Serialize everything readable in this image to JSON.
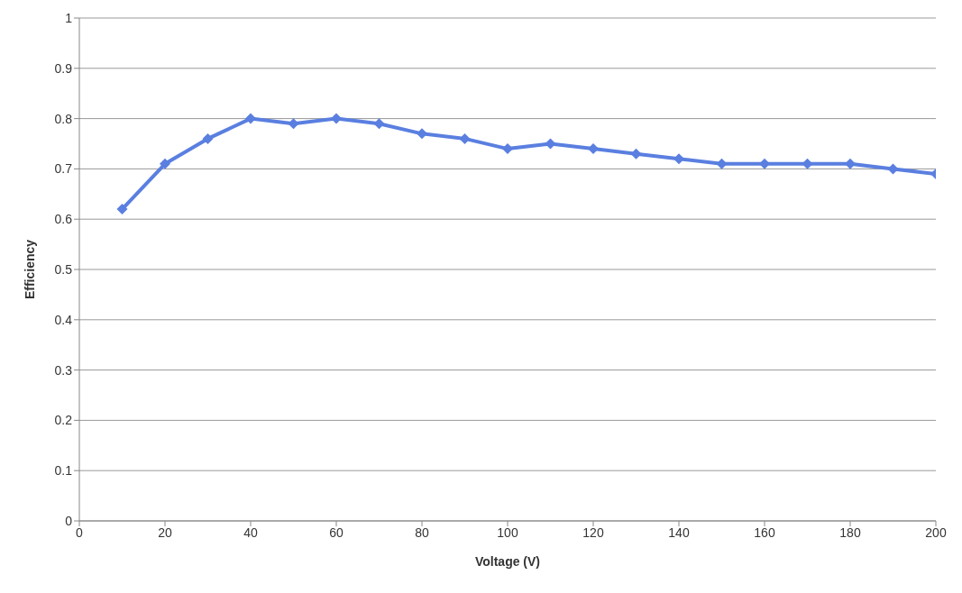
{
  "chart_data": {
    "type": "line",
    "xlabel": "Voltage (V)",
    "ylabel": "Efficiency",
    "x": [
      10,
      20,
      30,
      40,
      50,
      60,
      70,
      80,
      90,
      100,
      110,
      120,
      130,
      140,
      150,
      160,
      170,
      180,
      190,
      200
    ],
    "series": [
      {
        "color": "#5a7fe0",
        "values": [
          0.62,
          0.71,
          0.76,
          0.8,
          0.79,
          0.8,
          0.79,
          0.77,
          0.76,
          0.74,
          0.75,
          0.74,
          0.73,
          0.72,
          0.71,
          0.71,
          0.71,
          0.71,
          0.7,
          0.69
        ]
      }
    ],
    "xlim": [
      0,
      200
    ],
    "xticks": [
      0,
      20,
      40,
      60,
      80,
      100,
      120,
      140,
      160,
      180,
      200
    ],
    "ylim": [
      0,
      1
    ],
    "yticks": [
      0,
      0.1,
      0.2,
      0.3,
      0.4,
      0.5,
      0.6,
      0.7,
      0.8,
      0.9,
      1
    ],
    "grid": "y",
    "legend": false,
    "marker": "diamond",
    "line_style": "solid"
  }
}
